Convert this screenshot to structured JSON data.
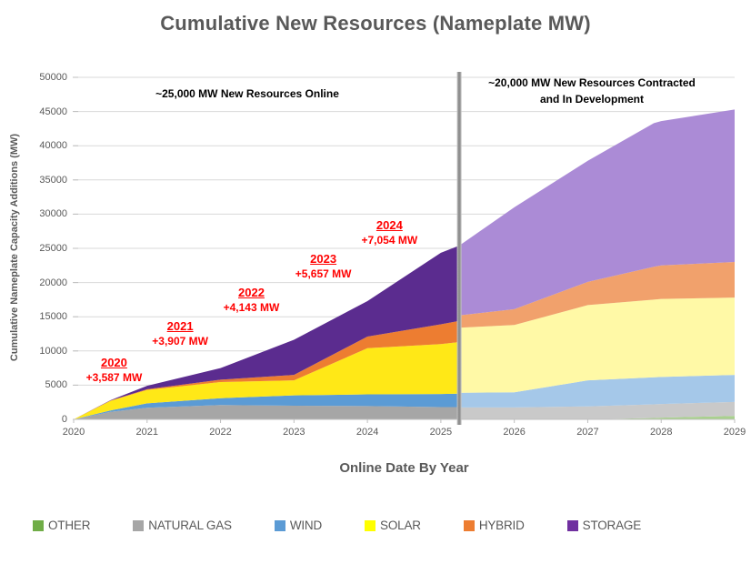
{
  "title": "Cumulative New Resources (Nameplate MW)",
  "y_axis": {
    "title": "Cumulative Nameplate Capacity Additions (MW)",
    "ticks": [
      0,
      5000,
      10000,
      15000,
      20000,
      25000,
      30000,
      35000,
      40000,
      45000,
      50000
    ]
  },
  "x_axis": {
    "title": "Online Date By Year",
    "ticks": [
      2020,
      2021,
      2022,
      2023,
      2024,
      2025,
      2026,
      2027,
      2028,
      2029
    ]
  },
  "annotations": {
    "left": "~25,000 MW New Resources Online",
    "right_line1": "~20,000 MW New Resources Contracted",
    "right_line2": "and In Development",
    "yearly": [
      {
        "year": "2020",
        "amount": "+3,587 MW",
        "anchor_year": 2020.55,
        "anchor_mw": 7200
      },
      {
        "year": "2021",
        "amount": "+3,907 MW",
        "anchor_year": 2021.45,
        "anchor_mw": 12500
      },
      {
        "year": "2022",
        "amount": "+4,143 MW",
        "anchor_year": 2022.42,
        "anchor_mw": 17400
      },
      {
        "year": "2023",
        "amount": "+5,657 MW",
        "anchor_year": 2023.4,
        "anchor_mw": 22350
      },
      {
        "year": "2024",
        "amount": "+7,054 MW",
        "anchor_year": 2024.3,
        "anchor_mw": 27300
      }
    ]
  },
  "legend": [
    {
      "label": "OTHER",
      "color": "#70AD47"
    },
    {
      "label": "NATURAL GAS",
      "color": "#A6A6A6"
    },
    {
      "label": "WIND",
      "color": "#5B9BD5"
    },
    {
      "label": "SOLAR",
      "color": "#FFFF00"
    },
    {
      "label": "HYBRID",
      "color": "#ED7D31"
    },
    {
      "label": "STORAGE",
      "color": "#7030A0"
    }
  ],
  "chart_data": {
    "type": "area",
    "stacked": true,
    "title": "Cumulative New Resources (Nameplate MW)",
    "xlabel": "Online Date By Year",
    "ylabel": "Cumulative Nameplate Capacity Additions (MW)",
    "xlim": [
      2020,
      2029
    ],
    "ylim": [
      0,
      50000
    ],
    "grid": "horizontal",
    "legend_position": "bottom",
    "divider_x": 2025.25,
    "series_order": [
      "OTHER",
      "NATURAL GAS",
      "WIND",
      "SOLAR",
      "HYBRID",
      "STORAGE"
    ],
    "colors": {
      "OTHER": "#70AD47",
      "NATURAL GAS": "#A6A6A6",
      "WIND": "#5B9BD5",
      "SOLAR": "#FFE817",
      "HYBRID": "#ED7D31",
      "STORAGE": "#5B2C8F"
    },
    "faded_colors": {
      "OTHER": "#A9D18E",
      "NATURAL GAS": "#C9C9C9",
      "WIND": "#A5C8E9",
      "SOLAR": "#FFF9A6",
      "HYBRID": "#F1A16C",
      "STORAGE": "#AB8BD6"
    },
    "yearly_additions_mw": {
      "2020": 3587,
      "2021": 3907,
      "2022": 4143,
      "2023": 5657,
      "2024": 7054
    },
    "segments": [
      {
        "name": "online",
        "palette": "colors",
        "x": [
          2020,
          2020.5,
          2021,
          2022,
          2023,
          2024,
          2025,
          2025.25
        ],
        "cumulative_tops": {
          "OTHER": [
            0,
            0,
            0,
            0,
            0,
            0,
            0,
            0
          ],
          "NATURAL GAS": [
            0,
            1100,
            1700,
            2100,
            2000,
            1950,
            1800,
            1800
          ],
          "WIND": [
            0,
            1300,
            2350,
            3100,
            3500,
            3650,
            3700,
            3750
          ],
          "SOLAR": [
            0,
            2700,
            4300,
            5450,
            5700,
            10400,
            11000,
            11300
          ],
          "HYBRID": [
            0,
            2750,
            4400,
            5800,
            6500,
            12100,
            13900,
            14400
          ],
          "STORAGE": [
            0,
            2800,
            4900,
            7494,
            11637,
            17294,
            24348,
            25400
          ]
        }
      },
      {
        "name": "contracted_in_development",
        "palette": "faded_colors",
        "x": [
          2025.25,
          2026,
          2027,
          2027.9,
          2028,
          2029
        ],
        "cumulative_tops": {
          "OTHER": [
            0,
            0,
            0,
            200,
            250,
            500
          ],
          "NATURAL GAS": [
            1750,
            1750,
            1900,
            2200,
            2250,
            2550
          ],
          "WIND": [
            3890,
            3950,
            5700,
            6150,
            6200,
            6500
          ],
          "SOLAR": [
            13400,
            13800,
            16700,
            17500,
            17600,
            17800
          ],
          "HYBRID": [
            15200,
            16100,
            20100,
            22300,
            22500,
            23000
          ],
          "STORAGE": [
            25400,
            31000,
            37800,
            43300,
            43600,
            45300
          ]
        }
      }
    ]
  }
}
